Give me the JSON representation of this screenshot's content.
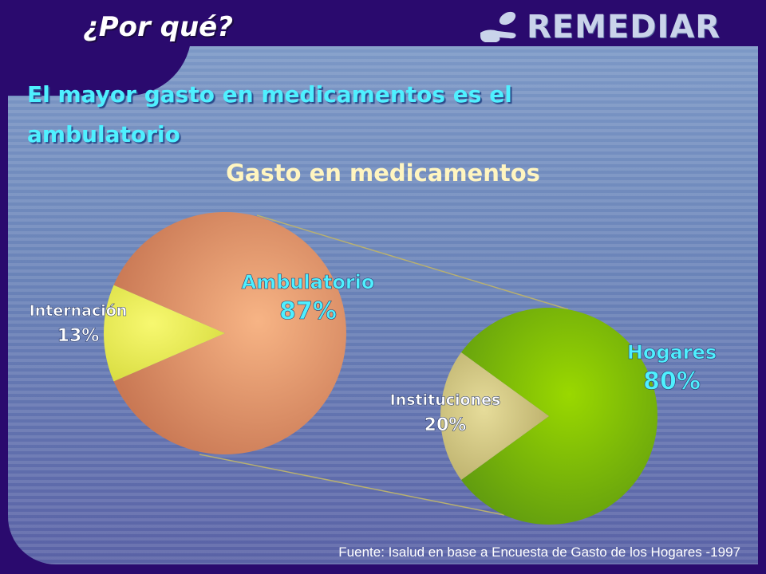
{
  "slide": {
    "title": "¿Por qué?",
    "subtitle": "El mayor gasto en medicamentos es el ambulatorio",
    "source": "Fuente: Isalud en base a Encuesta de Gasto de los Hogares -1997"
  },
  "logo": {
    "text": "REMEDIAR",
    "icon": "hand-pill-icon",
    "color": "#c9d3ea"
  },
  "chart_data": [
    {
      "type": "pie",
      "title": "Gasto en medicamentos",
      "slices": [
        {
          "label": "Ambulatorio",
          "value": 87,
          "value_label": "87%",
          "color": "#e8a070"
        },
        {
          "label": "Internación",
          "value": 13,
          "value_label": "13%",
          "color": "#eaee60"
        }
      ]
    },
    {
      "type": "pie",
      "title": "",
      "slices": [
        {
          "label": "Hogares",
          "value": 80,
          "value_label": "80%",
          "color": "#86c000"
        },
        {
          "label": "Instituciones",
          "value": 20,
          "value_label": "20%",
          "color": "#d8cc88"
        }
      ]
    }
  ],
  "colors": {
    "background": "#2a0a6e",
    "title_text": "#ffffff",
    "subtitle_text": "#4ff0ff",
    "chart_title_text": "#fff5c0",
    "label_cyan": "#4ff0ff",
    "label_white": "#ffffff"
  }
}
